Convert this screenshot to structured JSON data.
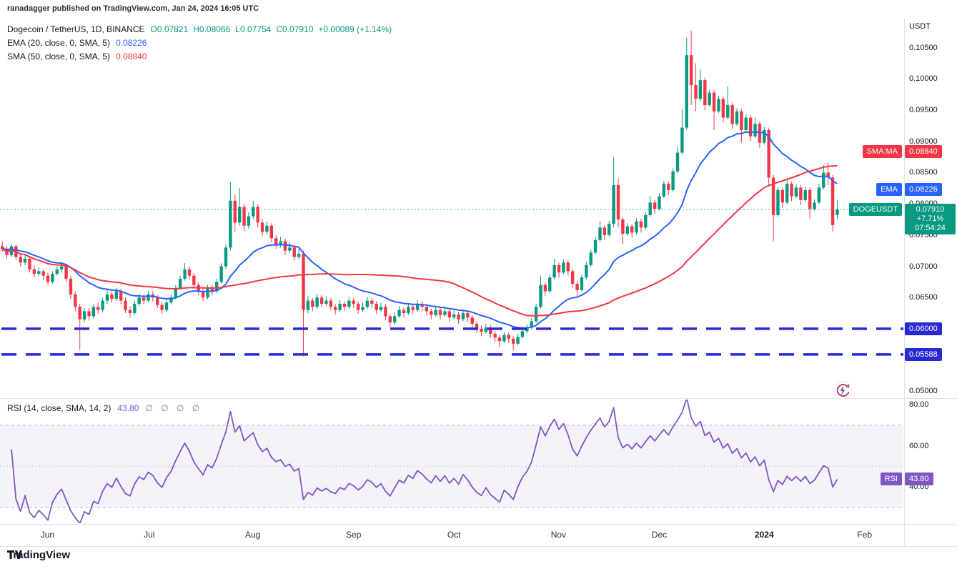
{
  "attribution": "ranadagger published on TradingView.com, Jan 24, 2024 16:05 UTC",
  "legend": {
    "symbol": "Dogecoin / TetherUS, 1D, BINANCE",
    "ohlc": [
      "O0.07821",
      "H0.08066",
      "L0.07754",
      "C0.07910",
      "+0.00089 (+1.14%)"
    ],
    "ema_label": "EMA (20, close, 0, SMA, 5)",
    "ema_value": "0.08226",
    "sma_label": "SMA (50, close, 0, SMA, 5)",
    "sma_value": "0.08840"
  },
  "rsi_legend": {
    "label": "RSI (14, close, SMA, 14, 2)",
    "value": "43.80",
    "hidden_values": "∅ ∅ ∅ ∅"
  },
  "axis": {
    "currency": "USDT",
    "price_ticks": [
      "0.10500",
      "0.10000",
      "0.09500",
      "0.09000",
      "0.08500",
      "0.08000",
      "0.07500",
      "0.07000",
      "0.06500",
      "0.06000",
      "0.05000"
    ],
    "rsi_ticks": [
      "80.00",
      "60.00",
      "40.00"
    ]
  },
  "tags": {
    "sma": {
      "label": "SMA:MA",
      "value": "0.08840",
      "price": 0.0884
    },
    "ema": {
      "label": "EMA",
      "value": "0.08226",
      "price": 0.08226
    },
    "symbol": {
      "label": "DOGEUSDT",
      "value": "0.07910",
      "change": "+7.71%",
      "countdown": "07:54:24",
      "price": 0.0791
    },
    "support1": {
      "value": "0.06000",
      "price": 0.06
    },
    "support2": {
      "value": "0.05588",
      "price": 0.05588
    },
    "rsi": {
      "label": "RSI",
      "value": "43.80",
      "level": 43.8
    }
  },
  "footer": {
    "brand": "TradingView"
  },
  "colors": {
    "up": "#089981",
    "down": "#F23645",
    "ema": "#2962FF",
    "sma": "#F23645",
    "support": "#2A2AD5",
    "rsi": "#7E57C2",
    "text": "#131722",
    "muted": "#787B86",
    "border": "#E0E3EB"
  },
  "chart_data": {
    "type": "candlestick",
    "symbol": "DOGEUSDT",
    "exchange": "BINANCE",
    "interval": "1D",
    "title": "Dogecoin / TetherUS, 1D, BINANCE",
    "price_axis": {
      "min": 0.049,
      "max": 0.1092
    },
    "current_price": 0.0791,
    "support_levels": [
      0.06,
      0.05588
    ],
    "indicators": {
      "ema": {
        "period": 20,
        "value": 0.08226
      },
      "sma": {
        "period": 50,
        "value": 0.0884
      },
      "rsi": {
        "period": 14,
        "value": 43.8,
        "overbought": 70,
        "oversold": 30,
        "midline": 50,
        "scale_ticks": [
          80,
          60,
          40
        ]
      }
    },
    "total_slots": 198,
    "x_ticks": [
      {
        "label": "Jun",
        "slot": 10.4
      },
      {
        "label": "Jul",
        "slot": 32.7
      },
      {
        "label": "Aug",
        "slot": 55.4
      },
      {
        "label": "Sep",
        "slot": 77.5
      },
      {
        "label": "Oct",
        "slot": 99.5
      },
      {
        "label": "Nov",
        "slot": 122.4
      },
      {
        "label": "Dec",
        "slot": 144.5
      },
      {
        "label": "2024",
        "slot": 167.5,
        "bold": true
      },
      {
        "label": "Feb",
        "slot": 189.5
      }
    ],
    "unit": 1e-05,
    "candles": [
      [
        7320,
        7400,
        7230,
        7280
      ],
      [
        7280,
        7330,
        7120,
        7180
      ],
      [
        7180,
        7360,
        7150,
        7320
      ],
      [
        7320,
        7350,
        7100,
        7150
      ],
      [
        7150,
        7210,
        7000,
        7060
      ],
      [
        7060,
        7180,
        7020,
        7120
      ],
      [
        7120,
        7150,
        6900,
        6950
      ],
      [
        6950,
        7010,
        6820,
        6880
      ],
      [
        6880,
        6980,
        6840,
        6920
      ],
      [
        6920,
        6950,
        6780,
        6850
      ],
      [
        6850,
        6900,
        6700,
        6750
      ],
      [
        6750,
        6920,
        6720,
        6880
      ],
      [
        6880,
        7000,
        6850,
        6950
      ],
      [
        6950,
        7060,
        6900,
        7000
      ],
      [
        7000,
        7030,
        6750,
        6800
      ],
      [
        6800,
        6850,
        6480,
        6550
      ],
      [
        6550,
        6600,
        6280,
        6350
      ],
      [
        6350,
        6400,
        5660,
        6150
      ],
      [
        6150,
        6330,
        6100,
        6280
      ],
      [
        6280,
        6330,
        6130,
        6200
      ],
      [
        6200,
        6400,
        6160,
        6350
      ],
      [
        6350,
        6420,
        6240,
        6300
      ],
      [
        6300,
        6500,
        6260,
        6450
      ],
      [
        6450,
        6620,
        6400,
        6550
      ],
      [
        6550,
        6600,
        6420,
        6480
      ],
      [
        6480,
        6660,
        6440,
        6600
      ],
      [
        6600,
        6640,
        6390,
        6450
      ],
      [
        6450,
        6500,
        6250,
        6300
      ],
      [
        6300,
        6360,
        6180,
        6250
      ],
      [
        6250,
        6450,
        6220,
        6400
      ],
      [
        6400,
        6560,
        6360,
        6500
      ],
      [
        6500,
        6550,
        6390,
        6450
      ],
      [
        6450,
        6600,
        6420,
        6550
      ],
      [
        6550,
        6600,
        6440,
        6500
      ],
      [
        6500,
        6540,
        6330,
        6380
      ],
      [
        6380,
        6430,
        6240,
        6300
      ],
      [
        6300,
        6470,
        6270,
        6420
      ],
      [
        6420,
        6550,
        6390,
        6500
      ],
      [
        6500,
        6700,
        6470,
        6650
      ],
      [
        6650,
        6850,
        6620,
        6800
      ],
      [
        6800,
        7050,
        6770,
        6950
      ],
      [
        6950,
        7000,
        6790,
        6850
      ],
      [
        6850,
        6890,
        6650,
        6700
      ],
      [
        6700,
        6750,
        6540,
        6600
      ],
      [
        6600,
        6650,
        6440,
        6500
      ],
      [
        6500,
        6700,
        6470,
        6650
      ],
      [
        6650,
        6700,
        6540,
        6600
      ],
      [
        6600,
        6800,
        6570,
        6750
      ],
      [
        6750,
        7050,
        6720,
        7000
      ],
      [
        7000,
        7350,
        6960,
        7300
      ],
      [
        7300,
        8350,
        7250,
        8050
      ],
      [
        8050,
        8150,
        7550,
        7700
      ],
      [
        7700,
        8250,
        7650,
        7950
      ],
      [
        7950,
        8000,
        7560,
        7650
      ],
      [
        7650,
        7870,
        7600,
        7800
      ],
      [
        7800,
        8050,
        7750,
        7950
      ],
      [
        7950,
        7990,
        7620,
        7700
      ],
      [
        7700,
        7760,
        7480,
        7550
      ],
      [
        7550,
        7720,
        7500,
        7650
      ],
      [
        7650,
        7690,
        7380,
        7450
      ],
      [
        7450,
        7500,
        7280,
        7350
      ],
      [
        7350,
        7470,
        7300,
        7400
      ],
      [
        7400,
        7440,
        7180,
        7250
      ],
      [
        7250,
        7380,
        7210,
        7300
      ],
      [
        7300,
        7340,
        7090,
        7150
      ],
      [
        7150,
        7280,
        7110,
        7200
      ],
      [
        7200,
        7250,
        5560,
        6300
      ],
      [
        6300,
        6520,
        6250,
        6450
      ],
      [
        6450,
        6490,
        6280,
        6350
      ],
      [
        6350,
        6560,
        6320,
        6500
      ],
      [
        6500,
        6540,
        6340,
        6400
      ],
      [
        6400,
        6520,
        6360,
        6450
      ],
      [
        6450,
        6490,
        6290,
        6350
      ],
      [
        6350,
        6390,
        6230,
        6300
      ],
      [
        6300,
        6460,
        6270,
        6400
      ],
      [
        6400,
        6440,
        6290,
        6350
      ],
      [
        6350,
        6510,
        6320,
        6450
      ],
      [
        6450,
        6490,
        6330,
        6400
      ],
      [
        6400,
        6440,
        6240,
        6300
      ],
      [
        6300,
        6420,
        6270,
        6350
      ],
      [
        6350,
        6510,
        6320,
        6450
      ],
      [
        6450,
        6490,
        6330,
        6400
      ],
      [
        6400,
        6440,
        6240,
        6300
      ],
      [
        6300,
        6420,
        6270,
        6350
      ],
      [
        6350,
        6390,
        6140,
        6200
      ],
      [
        6200,
        6240,
        6030,
        6100
      ],
      [
        6100,
        6260,
        6070,
        6200
      ],
      [
        6200,
        6360,
        6170,
        6300
      ],
      [
        6300,
        6340,
        6180,
        6250
      ],
      [
        6250,
        6410,
        6220,
        6350
      ],
      [
        6350,
        6390,
        6230,
        6300
      ],
      [
        6300,
        6460,
        6270,
        6400
      ],
      [
        6400,
        6440,
        6280,
        6350
      ],
      [
        6350,
        6390,
        6210,
        6280
      ],
      [
        6280,
        6320,
        6150,
        6220
      ],
      [
        6220,
        6360,
        6190,
        6300
      ],
      [
        6300,
        6340,
        6150,
        6220
      ],
      [
        6220,
        6340,
        6190,
        6280
      ],
      [
        6280,
        6320,
        6110,
        6180
      ],
      [
        6180,
        6300,
        6150,
        6230
      ],
      [
        6230,
        6270,
        6080,
        6150
      ],
      [
        6150,
        6310,
        6120,
        6250
      ],
      [
        6250,
        6290,
        6110,
        6180
      ],
      [
        6180,
        6220,
        6010,
        6080
      ],
      [
        6080,
        6120,
        5930,
        6000
      ],
      [
        6000,
        6050,
        5880,
        5950
      ],
      [
        5950,
        6080,
        5920,
        6020
      ],
      [
        6020,
        6060,
        5850,
        5920
      ],
      [
        5920,
        5960,
        5790,
        5860
      ],
      [
        5860,
        5900,
        5700,
        5800
      ],
      [
        5800,
        5950,
        5770,
        5900
      ],
      [
        5900,
        5940,
        5770,
        5840
      ],
      [
        5840,
        5880,
        5650,
        5760
      ],
      [
        5760,
        5920,
        5730,
        5870
      ],
      [
        5870,
        6010,
        5840,
        5960
      ],
      [
        5960,
        6070,
        5930,
        6020
      ],
      [
        6020,
        6170,
        5990,
        6120
      ],
      [
        6120,
        6400,
        6090,
        6350
      ],
      [
        6350,
        6850,
        6320,
        6700
      ],
      [
        6700,
        6740,
        6520,
        6600
      ],
      [
        6600,
        6870,
        6570,
        6820
      ],
      [
        6820,
        7120,
        6790,
        7020
      ],
      [
        7020,
        7060,
        6820,
        6900
      ],
      [
        6900,
        7110,
        6870,
        7060
      ],
      [
        7060,
        7100,
        6850,
        6920
      ],
      [
        6920,
        6960,
        6650,
        6720
      ],
      [
        6720,
        6760,
        6500,
        6620
      ],
      [
        6620,
        6870,
        6590,
        6820
      ],
      [
        6820,
        7070,
        6790,
        7020
      ],
      [
        7020,
        7270,
        6990,
        7220
      ],
      [
        7220,
        7470,
        7190,
        7420
      ],
      [
        7420,
        7720,
        7390,
        7620
      ],
      [
        7620,
        7660,
        7420,
        7500
      ],
      [
        7500,
        7730,
        7470,
        7680
      ],
      [
        7680,
        8750,
        7620,
        8300
      ],
      [
        8300,
        8400,
        7620,
        7750
      ],
      [
        7750,
        7790,
        7350,
        7520
      ],
      [
        7520,
        7690,
        7490,
        7640
      ],
      [
        7640,
        7680,
        7460,
        7540
      ],
      [
        7540,
        7770,
        7510,
        7720
      ],
      [
        7720,
        7760,
        7540,
        7620
      ],
      [
        7620,
        7870,
        7590,
        7820
      ],
      [
        7820,
        8120,
        7790,
        8020
      ],
      [
        8020,
        8060,
        7840,
        7920
      ],
      [
        7920,
        8170,
        7890,
        8120
      ],
      [
        8120,
        8370,
        8090,
        8320
      ],
      [
        8320,
        8360,
        8140,
        8220
      ],
      [
        8220,
        8570,
        8190,
        8520
      ],
      [
        8520,
        8920,
        8490,
        8820
      ],
      [
        8820,
        9520,
        8790,
        9220
      ],
      [
        9220,
        10660,
        9180,
        10380
      ],
      [
        10380,
        10770,
        9580,
        9900
      ],
      [
        9900,
        10250,
        9480,
        9680
      ],
      [
        9680,
        10150,
        9640,
        9980
      ],
      [
        9980,
        10020,
        9500,
        9580
      ],
      [
        9580,
        9830,
        9550,
        9780
      ],
      [
        9780,
        9820,
        9180,
        9480
      ],
      [
        9480,
        9730,
        9450,
        9680
      ],
      [
        9680,
        9720,
        9300,
        9380
      ],
      [
        9380,
        9880,
        9350,
        9580
      ],
      [
        9580,
        9620,
        9200,
        9280
      ],
      [
        9280,
        9530,
        9250,
        9480
      ],
      [
        9480,
        9520,
        8980,
        9180
      ],
      [
        9180,
        9430,
        9150,
        9380
      ],
      [
        9380,
        9420,
        9000,
        9080
      ],
      [
        9080,
        9380,
        9050,
        9280
      ],
      [
        9280,
        9320,
        8900,
        8980
      ],
      [
        8980,
        9230,
        8950,
        9180
      ],
      [
        9180,
        9220,
        8280,
        8420
      ],
      [
        8420,
        8460,
        7400,
        7820
      ],
      [
        7820,
        8270,
        7790,
        8220
      ],
      [
        8220,
        8260,
        7940,
        8020
      ],
      [
        8020,
        8420,
        7990,
        8320
      ],
      [
        8320,
        8360,
        8040,
        8120
      ],
      [
        8120,
        8310,
        8090,
        8260
      ],
      [
        8260,
        8300,
        7980,
        8060
      ],
      [
        8060,
        8270,
        8030,
        8220
      ],
      [
        8220,
        8260,
        7760,
        7920
      ],
      [
        7920,
        8070,
        7890,
        8020
      ],
      [
        8020,
        8320,
        7990,
        8260
      ],
      [
        8260,
        8620,
        8230,
        8500
      ],
      [
        8500,
        8660,
        8300,
        8420
      ],
      [
        8420,
        8460,
        7560,
        7660
      ],
      [
        7821,
        8066,
        7754,
        7910
      ]
    ]
  }
}
